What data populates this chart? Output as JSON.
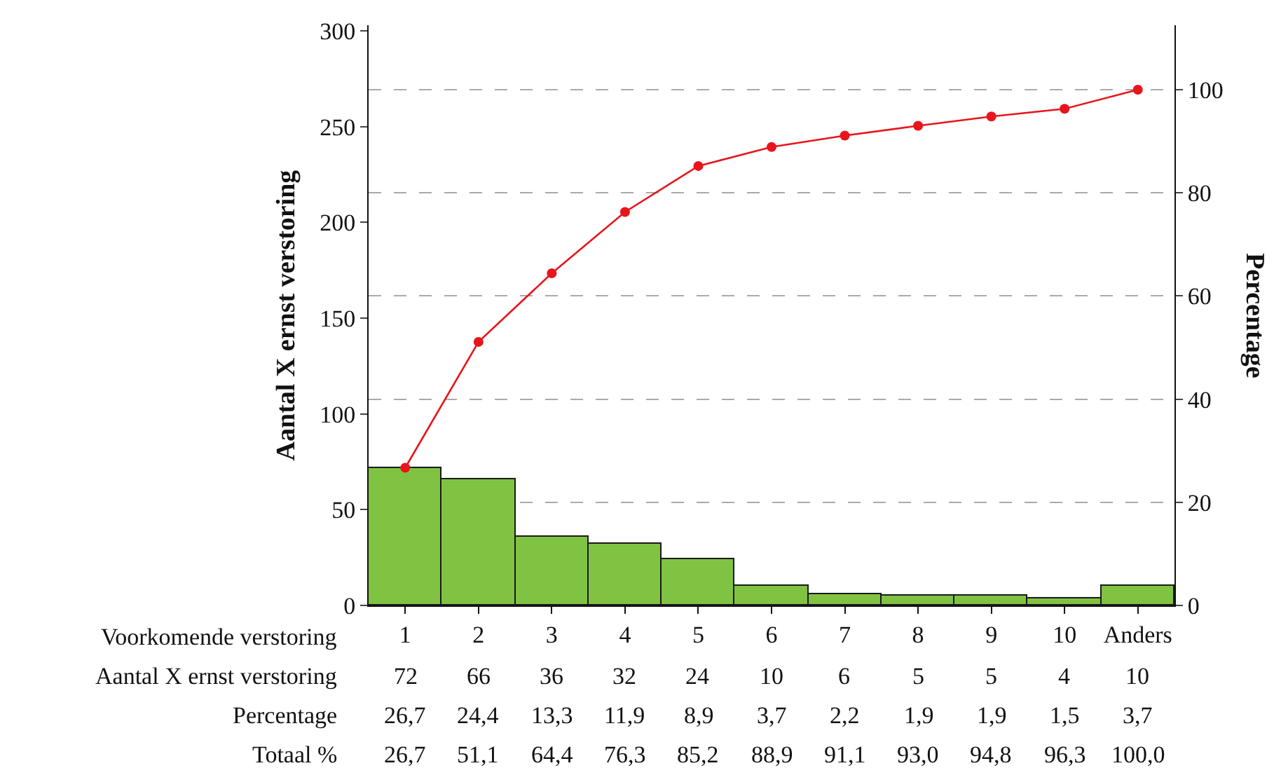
{
  "chart_data": {
    "type": "bar",
    "xlabel": "Voorkomende verstoring",
    "ylabel": "Aantal X ernst verstoring",
    "y2label": "Percentage",
    "categories": [
      "1",
      "2",
      "3",
      "4",
      "5",
      "6",
      "7",
      "8",
      "9",
      "10",
      "Anders"
    ],
    "series": [
      {
        "name": "Aantal X ernst verstoring",
        "color": "#80c342",
        "values": [
          72,
          66,
          36,
          32,
          24,
          10,
          6,
          5,
          5,
          4,
          10
        ]
      },
      {
        "type": "line",
        "axis": "y2",
        "color": "#e8151b",
        "marker": "circle",
        "values": [
          26.7,
          51.1,
          64.4,
          76.3,
          85.2,
          88.9,
          91.1,
          93.0,
          94.8,
          96.3,
          100.0
        ],
        "value_labels": [
          "26,7",
          "51,1",
          "64,4",
          "76,3",
          "85,2",
          "88,9",
          "91,1",
          "93,0",
          "94,8",
          "96,3",
          "100,0"
        ]
      }
    ],
    "annotations": [
      "Percentage",
      "26,7",
      "24,4",
      "13,3",
      "11,9",
      "8,9",
      "3,7",
      "2,2",
      "1,9",
      "1,9",
      "1,5",
      "3,7",
      "Totaal %"
    ],
    "data_labels": true,
    "ylim": [
      0,
      303
    ],
    "yticks": [
      0,
      50,
      100,
      150,
      200,
      250,
      300
    ],
    "y2lim": [
      0,
      112.5
    ],
    "y2ticks": [
      0,
      20,
      40,
      60,
      80,
      100
    ],
    "grid": true,
    "legend": false
  }
}
